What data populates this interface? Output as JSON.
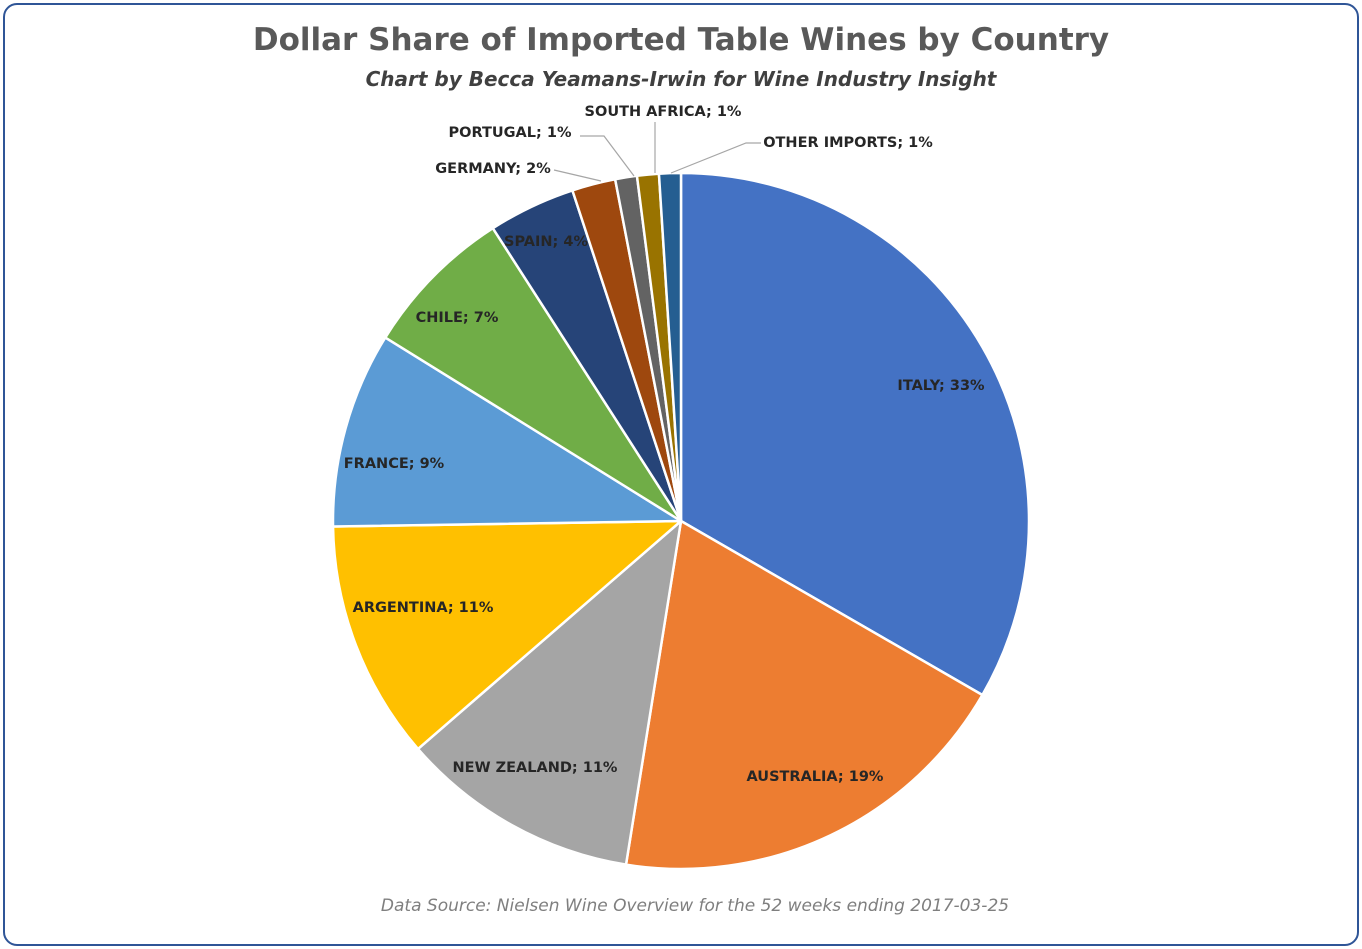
{
  "chart_data": {
    "type": "pie",
    "title": "Dollar Share of Imported Table Wines by Country",
    "subtitle": "Chart by Becca Yeamans-Irwin for Wine Industry Insight",
    "source": "Data Source: Nielsen Wine Overview for the 52 weeks ending 2017-03-25",
    "slices": [
      {
        "name": "ITALY",
        "value": 33,
        "label": "ITALY; 33%",
        "color": "#4472c4"
      },
      {
        "name": "AUSTRALIA",
        "value": 19,
        "label": "AUSTRALIA; 19%",
        "color": "#ed7d31"
      },
      {
        "name": "NEW ZEALAND",
        "value": 11,
        "label": "NEW ZEALAND; 11%",
        "color": "#a5a5a5"
      },
      {
        "name": "ARGENTINA",
        "value": 11,
        "label": "ARGENTINA; 11%",
        "color": "#ffc000"
      },
      {
        "name": "FRANCE",
        "value": 9,
        "label": "FRANCE; 9%",
        "color": "#5b9bd5"
      },
      {
        "name": "CHILE",
        "value": 7,
        "label": "CHILE; 7%",
        "color": "#70ad47"
      },
      {
        "name": "SPAIN",
        "value": 4,
        "label": "SPAIN; 4%",
        "color": "#264478"
      },
      {
        "name": "GERMANY",
        "value": 2,
        "label": "GERMANY; 2%",
        "color": "#9e480e"
      },
      {
        "name": "PORTUGAL",
        "value": 1,
        "label": "PORTUGAL; 1%",
        "color": "#636363"
      },
      {
        "name": "SOUTH AFRICA",
        "value": 1,
        "label": "SOUTH AFRICA; 1%",
        "color": "#997300"
      },
      {
        "name": "OTHER IMPORTS",
        "value": 1,
        "label": "OTHER IMPORTS; 1%",
        "color": "#255e91"
      }
    ]
  }
}
